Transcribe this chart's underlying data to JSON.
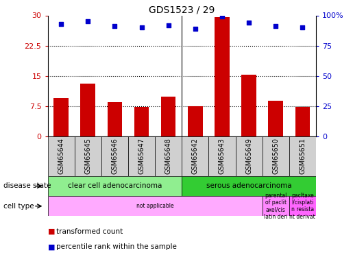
{
  "title": "GDS1523 / 29",
  "samples": [
    "GSM65644",
    "GSM65645",
    "GSM65646",
    "GSM65647",
    "GSM65648",
    "GSM65642",
    "GSM65643",
    "GSM65649",
    "GSM65650",
    "GSM65651"
  ],
  "bar_values": [
    9.5,
    13.0,
    8.5,
    7.2,
    9.8,
    7.5,
    29.5,
    15.2,
    8.8,
    7.2
  ],
  "dot_values_pct": [
    93,
    95,
    91,
    90,
    92,
    89,
    99,
    94,
    91,
    90
  ],
  "ylim_left": [
    0,
    30
  ],
  "ylim_right": [
    0,
    100
  ],
  "yticks_left": [
    0,
    7.5,
    15,
    22.5,
    30
  ],
  "ytick_labels_left": [
    "0",
    "7.5",
    "15",
    "22.5",
    "30"
  ],
  "yticks_right": [
    0,
    25,
    50,
    75,
    100
  ],
  "ytick_labels_right": [
    "0",
    "25",
    "50",
    "75",
    "100%"
  ],
  "bar_color": "#cc0000",
  "dot_color": "#0000cc",
  "disease_state_groups": [
    {
      "label": "clear cell adenocarcinoma",
      "start": 0,
      "end": 5,
      "color": "#90ee90"
    },
    {
      "label": "serous adenocarcinoma",
      "start": 5,
      "end": 10,
      "color": "#33cc33"
    }
  ],
  "cell_type_groups": [
    {
      "label": "not applicable",
      "start": 0,
      "end": 8,
      "color": "#ffaaff"
    },
    {
      "label": "parental\nof paclit\naxel/cis\nlatin deri",
      "start": 8,
      "end": 9,
      "color": "#ff88ff"
    },
    {
      "label": "pacltaxe\nl/cisplati\nn resista\nnt derivat",
      "start": 9,
      "end": 10,
      "color": "#ff66ff"
    }
  ],
  "legend_items": [
    {
      "color": "#cc0000",
      "label": "transformed count"
    },
    {
      "color": "#0000cc",
      "label": "percentile rank within the sample"
    }
  ],
  "tick_label_color_left": "#cc0000",
  "tick_label_color_right": "#0000cc",
  "xticklabel_bg": "#d0d0d0"
}
